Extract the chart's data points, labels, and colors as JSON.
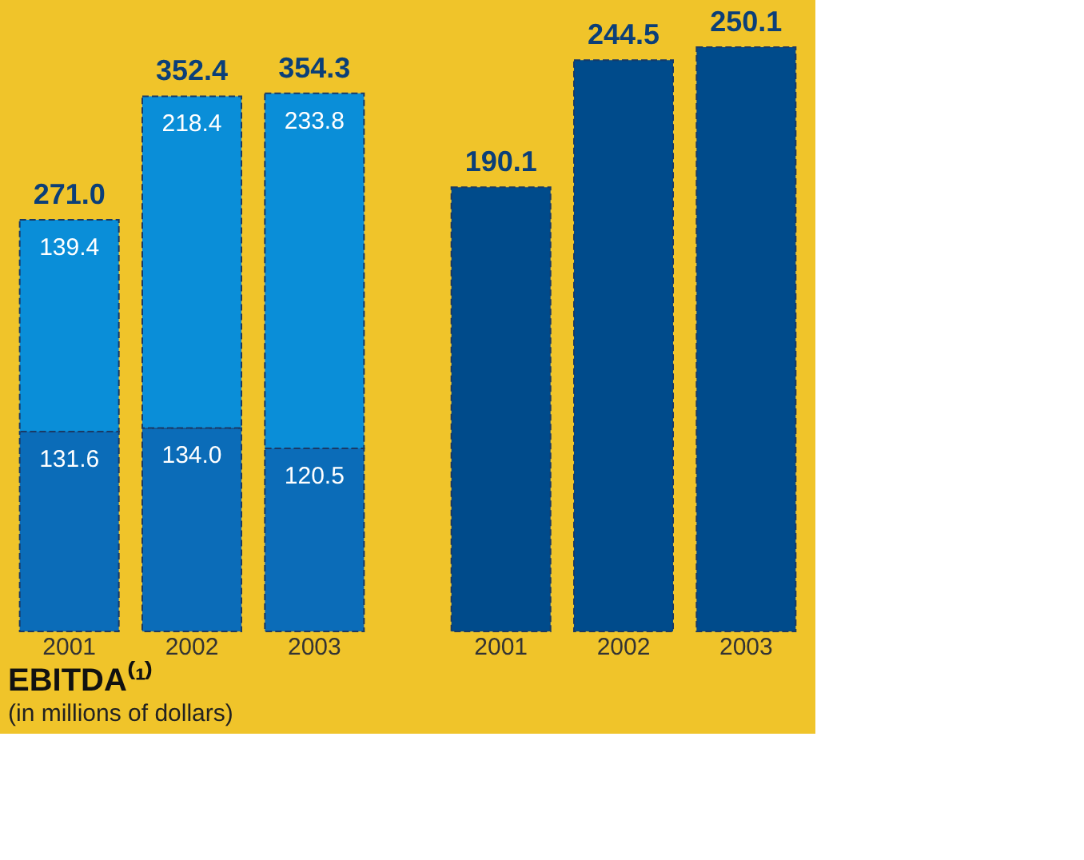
{
  "chart_data": [
    {
      "type": "bar",
      "title": "EBITDA⁽¹⁾",
      "subtitle": "(in millions of dollars)",
      "categories": [
        "2001",
        "2002",
        "2003"
      ],
      "stacked": true,
      "series": [
        {
          "color": "#0b6cb8",
          "values": [
            131.6,
            134.0,
            120.5
          ],
          "value_labels": [
            "131.6",
            "134.0",
            "120.5"
          ]
        },
        {
          "color": "#0a8ed8",
          "values": [
            139.4,
            218.4,
            233.8
          ],
          "value_labels": [
            "139.4",
            "218.4",
            "233.8"
          ]
        }
      ],
      "totals": [
        "271.0",
        "352.4",
        "354.3"
      ]
    },
    {
      "type": "bar",
      "categories": [
        "2001",
        "2002",
        "2003"
      ],
      "data_labels": true,
      "series": [
        {
          "color": "#004b8b",
          "values": [
            190.1,
            244.5,
            250.1
          ]
        }
      ]
    }
  ]
}
